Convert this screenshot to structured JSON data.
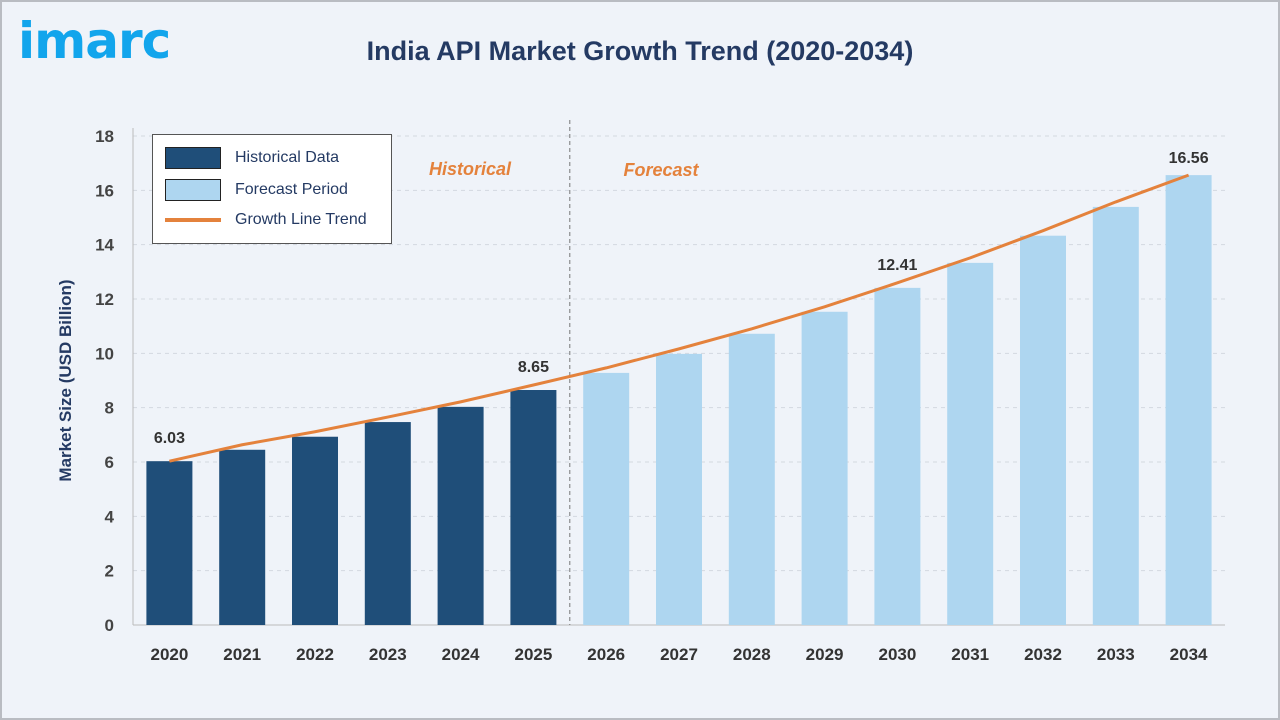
{
  "logo": "imarc",
  "colors": {
    "historical": "#1f4e79",
    "forecast": "#aed6f0",
    "trend": "#e4823c",
    "title": "#243a63",
    "logo": "#12a5ec"
  },
  "chart_data": {
    "type": "bar",
    "title": "India API Market Growth Trend (2020-2034)",
    "xlabel": "",
    "ylabel": "Market Size (USD Billion)",
    "ylim": [
      0,
      18
    ],
    "yticks": [
      0,
      2,
      4,
      6,
      8,
      10,
      12,
      14,
      16,
      18
    ],
    "grid": true,
    "legend_position": "top-left",
    "categories": [
      "2020",
      "2021",
      "2022",
      "2023",
      "2024",
      "2025",
      "2026",
      "2027",
      "2028",
      "2029",
      "2030",
      "2031",
      "2032",
      "2033",
      "2034"
    ],
    "values": [
      6.03,
      6.45,
      6.93,
      7.47,
      8.03,
      8.65,
      9.28,
      9.98,
      10.72,
      11.53,
      12.41,
      13.33,
      14.33,
      15.39,
      16.56
    ],
    "series_split": {
      "historical": [
        "2020",
        "2025"
      ],
      "forecast": [
        "2026",
        "2034"
      ]
    },
    "data_labels": {
      "2020": "6.03",
      "2025": "8.65",
      "2030": "12.41",
      "2034": "16.56"
    },
    "legend": [
      "Historical Data",
      "Forecast Period",
      "Growth Line Trend"
    ],
    "annotations": {
      "historical": "Historical",
      "forecast": "Forecast"
    }
  }
}
